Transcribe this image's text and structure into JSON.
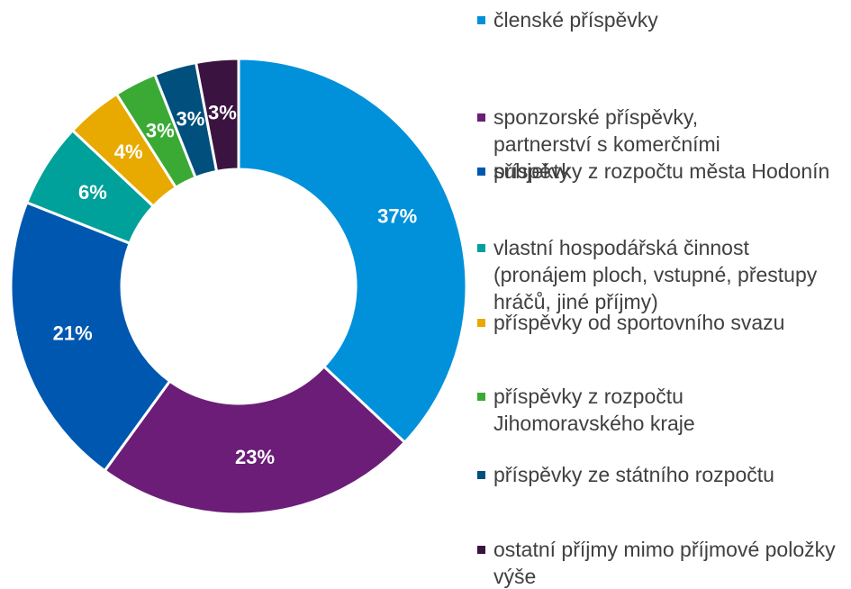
{
  "chart_data": {
    "type": "donut",
    "categories": [
      "členské příspěvky",
      "sponzorské příspěvky, partnerství s komerčními subjekty",
      "příspěvky z rozpočtu města Hodonín",
      "vlastní hospodářská činnost (pronájem ploch, vstupné, přestupy hráčů, jiné příjmy)",
      "příspěvky od sportovního svazu",
      "příspěvky z rozpočtu Jihomoravského kraje",
      "příspěvky ze státního rozpočtu",
      "ostatní příjmy mimo příjmové položky výše"
    ],
    "values": [
      37,
      23,
      21,
      6,
      4,
      3,
      3,
      3
    ],
    "value_labels": [
      "37%",
      "23%",
      "21%",
      "6%",
      "4%",
      "3%",
      "3%",
      "3%"
    ],
    "colors": [
      "#0091da",
      "#6b1d78",
      "#0057b0",
      "#00a19a",
      "#e8a900",
      "#3aaa35",
      "#004f7c",
      "#3b1340"
    ],
    "legend": "right"
  }
}
